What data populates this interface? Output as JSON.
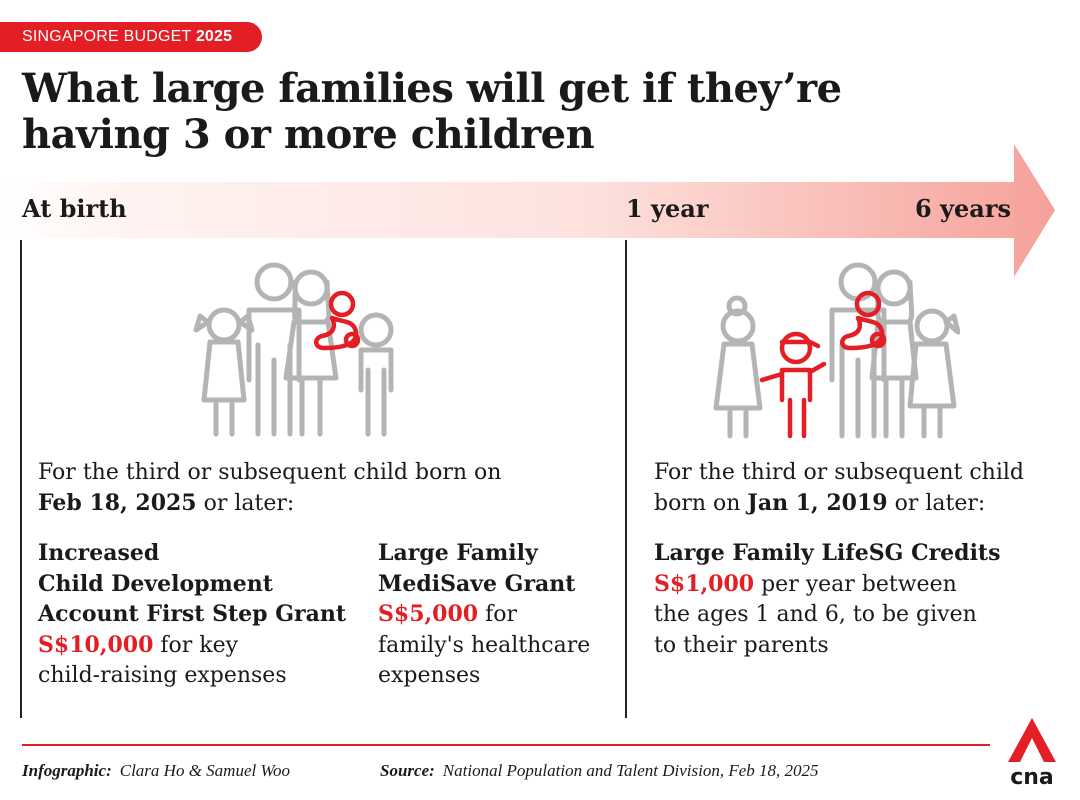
{
  "tag": {
    "text": "SINGAPORE BUDGET",
    "year": "2025"
  },
  "title": "What large families will get if they’re having 3 or more children",
  "timeline": {
    "labels": [
      "At birth",
      "1 year",
      "6 years"
    ]
  },
  "left_panel": {
    "intro_prefix": "For the third or subsequent child born on",
    "intro_date": "Feb 18, 2025",
    "intro_suffix": " or later:",
    "benefits": [
      {
        "heading_lines": [
          "Increased",
          "Child Development",
          "Account First Step Grant"
        ],
        "amount": "S$10,000",
        "desc_first": " for key",
        "desc_rest": "child-raising expenses"
      },
      {
        "heading_lines": [
          "Large Family",
          "MediSave Grant"
        ],
        "amount": "S$5,000",
        "desc_first": " for",
        "desc_rest_lines": [
          "family's healthcare",
          "expenses"
        ]
      }
    ]
  },
  "right_panel": {
    "intro_line1": "For the third or subsequent child",
    "intro_prefix2": "born on ",
    "intro_date": "Jan 1, 2019",
    "intro_suffix": " or later:",
    "benefit": {
      "heading": "Large Family LifeSG Credits",
      "amount": "S$1,000",
      "desc_first": " per year between",
      "desc_rest_lines": [
        "the ages 1 and 6, to be given",
        "to their parents"
      ]
    }
  },
  "footer": {
    "infographic_label": "Infographic:",
    "infographic_value": "Clara Ho & Samuel Woo",
    "source_label": "Source:",
    "source_value": "National Population and Talent Division, Feb 18, 2025"
  },
  "logo": {
    "text": "cna"
  },
  "colors": {
    "accent": "#e31e24",
    "figure_gray": "#b4b4b4",
    "arrow_light": "#fde4e1",
    "arrow_dark": "#f6a29b"
  }
}
